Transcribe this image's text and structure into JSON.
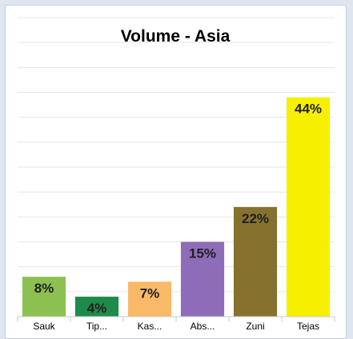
{
  "chart_data": {
    "type": "bar",
    "title": "Volume - Asia",
    "categories": [
      "Sauk",
      "Tip...",
      "Kas...",
      "Abs...",
      "Zuni",
      "Tejas"
    ],
    "values": [
      8,
      4,
      7,
      15,
      22,
      44
    ],
    "data_labels": [
      "8%",
      "4%",
      "7%",
      "15%",
      "22%",
      "44%"
    ],
    "colors": [
      "#8cc152",
      "#1e8a4c",
      "#f9b968",
      "#8f6cb7",
      "#87712f",
      "#f7ef00"
    ],
    "ylim": [
      0,
      60
    ],
    "grid": true,
    "legend": "none"
  }
}
